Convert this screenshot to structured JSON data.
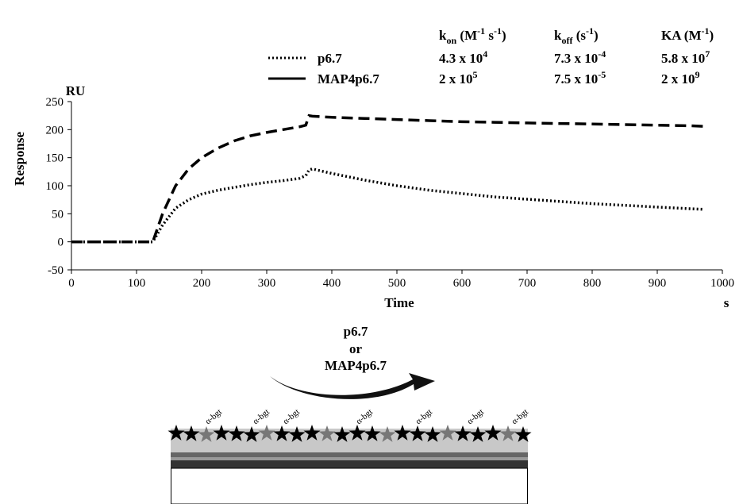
{
  "chart_data": {
    "type": "line",
    "y_label": "Response",
    "y_unit": "RU",
    "x_label": "Time",
    "x_unit": "s",
    "x": [
      0,
      50,
      100,
      125,
      140,
      160,
      180,
      200,
      225,
      250,
      275,
      300,
      325,
      350,
      360,
      365,
      370,
      400,
      450,
      500,
      550,
      600,
      650,
      700,
      750,
      800,
      850,
      900,
      950,
      970
    ],
    "series": [
      {
        "name": "p6.7",
        "color": "#000000",
        "linestyle": "dotted",
        "values": [
          0,
          0,
          0,
          0,
          30,
          60,
          75,
          85,
          92,
          97,
          102,
          106,
          109,
          113,
          118,
          128,
          130,
          122,
          110,
          100,
          92,
          86,
          80,
          76,
          72,
          68,
          65,
          62,
          59,
          58
        ]
      },
      {
        "name": "MAP4p6.7",
        "color": "#000000",
        "linestyle": "dashed",
        "values": [
          0,
          0,
          0,
          0,
          50,
          100,
          130,
          150,
          167,
          180,
          189,
          195,
          200,
          205,
          208,
          225,
          224,
          222,
          220,
          218,
          216,
          214,
          213,
          212,
          211,
          210,
          209,
          208,
          207,
          206
        ]
      }
    ],
    "xlim": [
      0,
      1000
    ],
    "xticks": [
      0,
      100,
      200,
      300,
      400,
      500,
      600,
      700,
      800,
      900,
      1000
    ],
    "ylim": [
      -50,
      250
    ],
    "yticks": [
      -50,
      0,
      50,
      100,
      150,
      200,
      250
    ]
  },
  "kinetics": {
    "headers": [
      [
        "k",
        "on",
        " (M",
        "-1",
        " s",
        "-1",
        ")"
      ],
      [
        "k",
        "off",
        " (s",
        "-1",
        ")"
      ],
      [
        "KA (M",
        "-1",
        ")"
      ]
    ],
    "rows": [
      [
        [
          "4.3 x 10",
          "4"
        ],
        [
          "7.3 x 10",
          "-4"
        ],
        [
          "5.8 x 10",
          "7"
        ]
      ],
      [
        [
          "2 x 10",
          "5"
        ],
        [
          "7.5 x 10",
          "-5"
        ],
        [
          "2 x 10",
          "9"
        ]
      ]
    ]
  },
  "diagram": {
    "arrow_label": [
      "p6.7",
      "or",
      "MAP4p6.7"
    ],
    "labels": [
      "α-bgt",
      "α-bgt",
      "α-bgt",
      "α-bgt",
      "α-bgt",
      "α-bgt",
      "α-bgt"
    ]
  }
}
